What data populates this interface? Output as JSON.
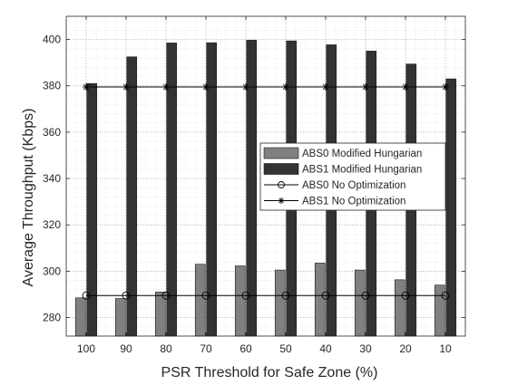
{
  "chart_data": {
    "type": "bar",
    "xlabel": "PSR Threshold for Safe Zone (%)",
    "ylabel": "Average Throughput (Kbps)",
    "categories": [
      "100",
      "90",
      "80",
      "70",
      "60",
      "50",
      "40",
      "30",
      "20",
      "10"
    ],
    "ylim": [
      272,
      410
    ],
    "yticks": [
      280,
      300,
      320,
      340,
      360,
      380,
      400
    ],
    "grid": true,
    "minor_grid": true,
    "legend_position": "right",
    "series": [
      {
        "name": "ABS0 Modified Hungarian",
        "kind": "bar",
        "color": "#808080",
        "values": [
          288.5,
          288.2,
          291,
          303,
          302.3,
          300.5,
          303.5,
          300.5,
          296.3,
          294
        ]
      },
      {
        "name": "ABS1 Modified Hungarian",
        "kind": "bar",
        "color": "#333333",
        "values": [
          381,
          392.5,
          398.5,
          398.6,
          399.7,
          399.4,
          397.7,
          395,
          389.4,
          383
        ]
      },
      {
        "name": "ABS0 No Optimization",
        "kind": "line",
        "marker": "circle",
        "color": "#000000",
        "values": [
          289.5,
          289.5,
          289.5,
          289.5,
          289.5,
          289.5,
          289.5,
          289.5,
          289.5,
          289.5
        ]
      },
      {
        "name": "ABS1 No Optimization",
        "kind": "line",
        "marker": "star",
        "color": "#000000",
        "values": [
          379.5,
          379.5,
          379.5,
          379.5,
          379.5,
          379.5,
          379.5,
          379.5,
          379.5,
          379.5
        ]
      }
    ]
  }
}
